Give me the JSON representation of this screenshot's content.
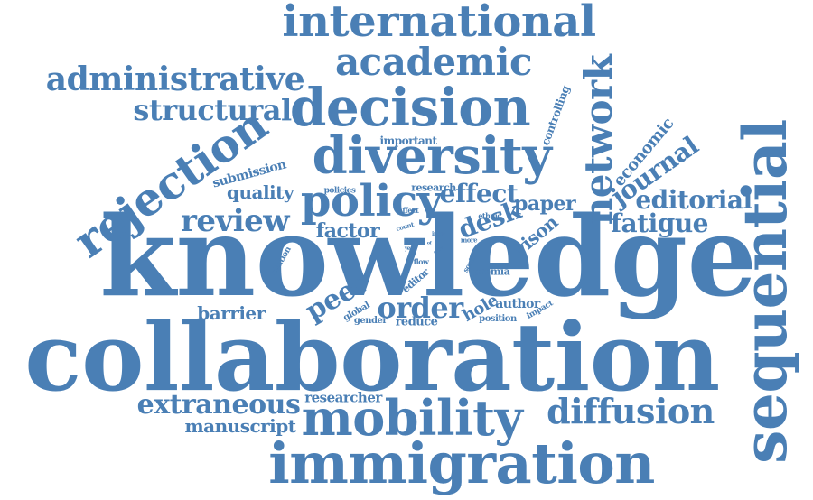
{
  "cloud": {
    "color": "#4a7fb5",
    "words": [
      "knowledge",
      "collaboration",
      "sequential",
      "immigration",
      "mobility",
      "diversity",
      "decision",
      "international",
      "rejection",
      "academic",
      "network",
      "policy",
      "administrative",
      "diffusion",
      "structural",
      "extraneous",
      "review",
      "order",
      "journal",
      "editorial",
      "fatigue",
      "peer",
      "effect",
      "economic",
      "factor",
      "desk",
      "manuscript",
      "paper",
      "quality",
      "barrier",
      "vison",
      "submission",
      "researcher",
      "hole",
      "author",
      "controlling",
      "important",
      "reduce",
      "research",
      "policies",
      "premia",
      "editor",
      "citation",
      "ethnic",
      "position",
      "gender",
      "global",
      "social",
      "affect",
      "impact",
      "count",
      "flow",
      "inter",
      "more",
      "year",
      "fare",
      "of"
    ]
  }
}
